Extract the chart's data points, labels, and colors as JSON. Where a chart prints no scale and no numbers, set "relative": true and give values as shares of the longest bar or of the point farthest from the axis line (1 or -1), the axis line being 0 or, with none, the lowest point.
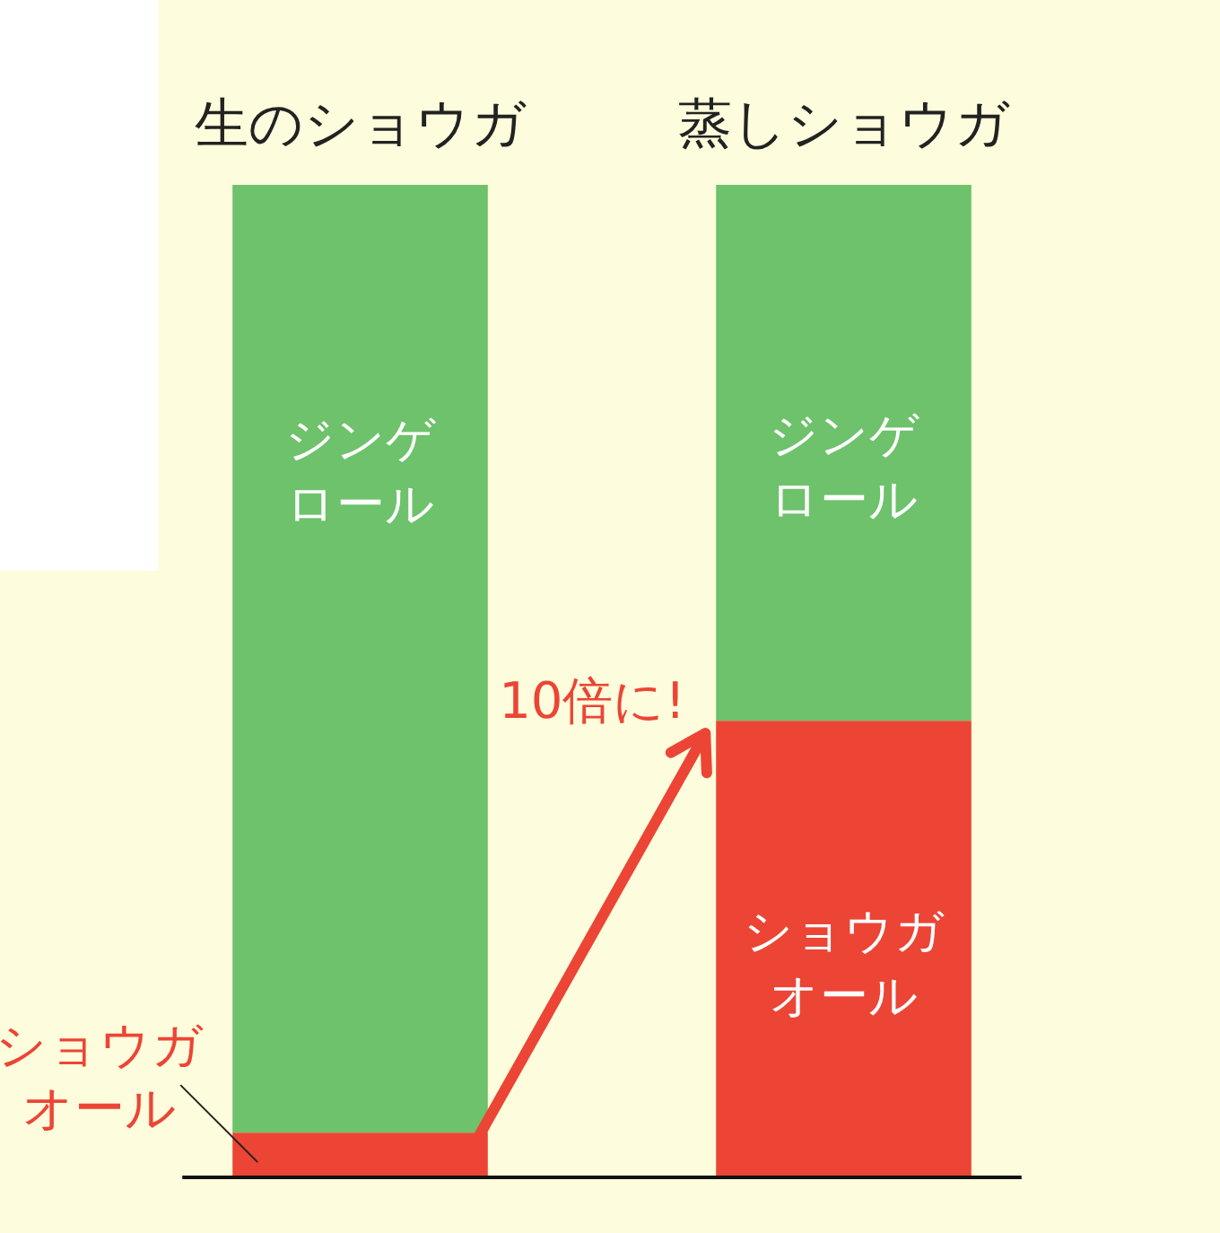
{
  "chart_data": {
    "type": "bar",
    "categories": [
      "生のショウガ",
      "蒸しショウガ"
    ],
    "series": [
      {
        "name": "ショウガオール",
        "color": "#ec4535",
        "values": [
          0.045,
          0.46
        ]
      },
      {
        "name": "ジンゲロール",
        "color": "#6dc26b",
        "values": [
          0.955,
          0.54
        ]
      }
    ],
    "stacked": true,
    "relative": true,
    "annotations": [
      "10倍に!"
    ]
  }
}
